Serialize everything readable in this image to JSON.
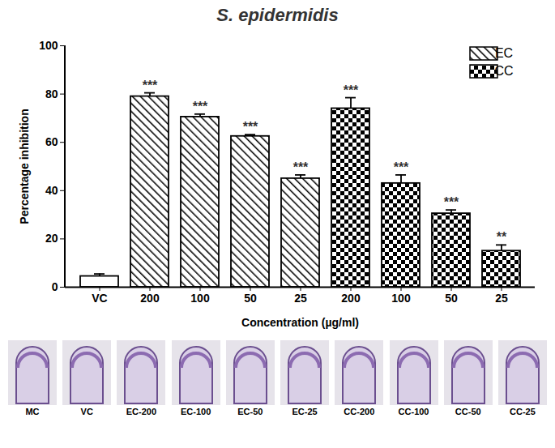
{
  "chart_data": {
    "type": "bar",
    "title": "S. epidermidis",
    "x_label": "Concentration (µg/ml)",
    "y_label": "Percentage inhibition",
    "categories": [
      "VC",
      "200",
      "100",
      "50",
      "25",
      "200",
      "100",
      "50",
      "25"
    ],
    "series": [
      {
        "color": "#ffffff",
        "values": [
          4.5,
          null,
          null,
          null,
          null,
          null,
          null,
          null,
          null
        ],
        "errors": [
          1,
          null,
          null,
          null,
          null,
          null,
          null,
          null,
          null
        ],
        "annotations": [
          null,
          null,
          null,
          null,
          null,
          null,
          null,
          null,
          null
        ]
      },
      {
        "name": "EC",
        "marker": "hatch",
        "color": "#000000",
        "values": [
          null,
          79,
          70.5,
          62.5,
          45,
          null,
          null,
          null,
          null
        ],
        "errors": [
          null,
          1.5,
          1.2,
          0.7,
          1.5,
          null,
          null,
          null,
          null
        ],
        "annotations": [
          null,
          "***",
          "***",
          "***",
          "***",
          null,
          null,
          null,
          null
        ]
      },
      {
        "name": "CC",
        "marker": "checker",
        "color": "#000000",
        "values": [
          null,
          null,
          null,
          null,
          null,
          74,
          43,
          30.5,
          15
        ],
        "errors": [
          null,
          null,
          null,
          null,
          null,
          4.5,
          3.5,
          1.5,
          2.5
        ],
        "annotations": [
          null,
          null,
          null,
          null,
          null,
          "***",
          "***",
          "***",
          "**"
        ]
      }
    ],
    "ylim": [
      0,
      100
    ],
    "yticks": [
      0,
      20,
      40,
      60,
      80,
      100
    ],
    "legend": "top-right",
    "grid": false
  },
  "photos": {
    "labels": [
      "MC",
      "VC",
      "EC-200",
      "EC-100",
      "EC-50",
      "EC-25",
      "CC-200",
      "CC-100",
      "CC-50",
      "CC-25"
    ]
  }
}
